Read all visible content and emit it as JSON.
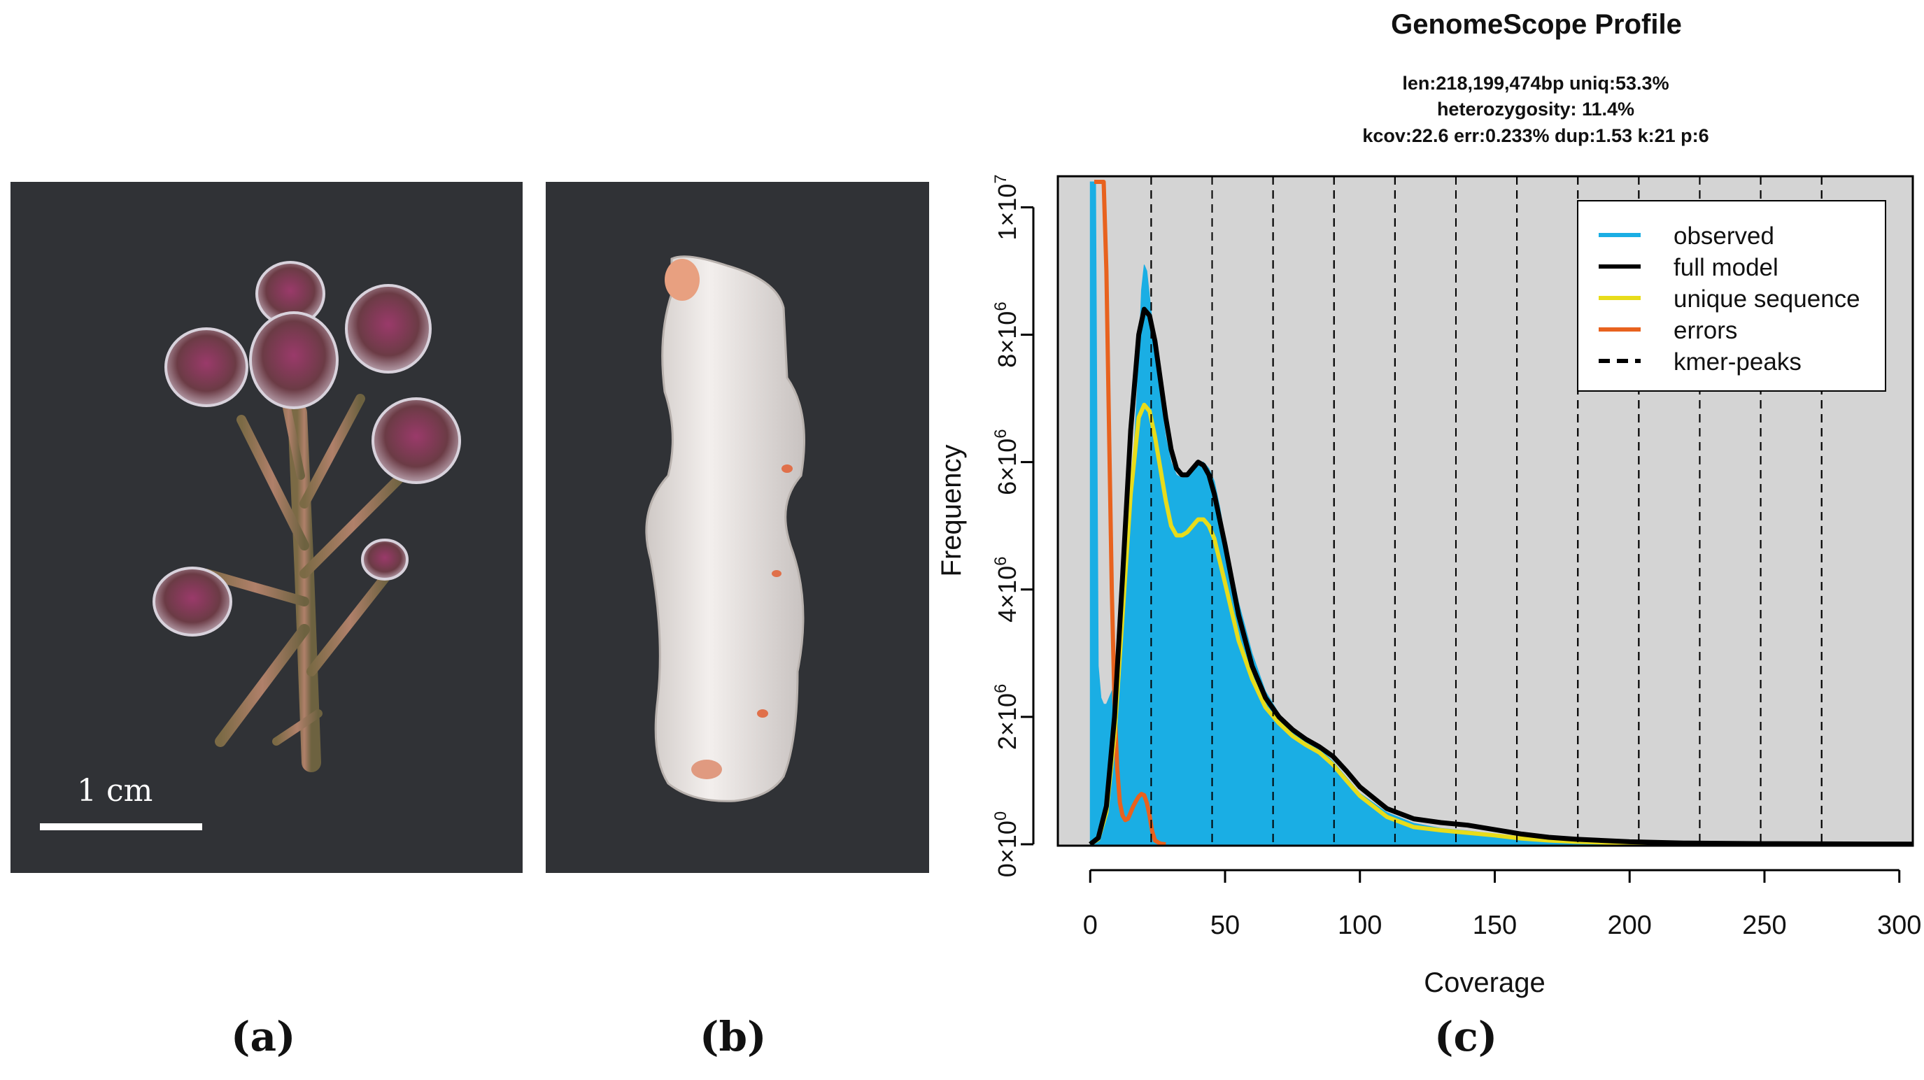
{
  "panel_labels": [
    "(a)",
    "(b)",
    "(c)"
  ],
  "scale_bar": {
    "text": "1 cm"
  },
  "chart_data": {
    "type": "line",
    "title": "GenomeScope Profile",
    "subtitle_lines": [
      "len:218,199,474bp uniq:53.3%",
      "heterozygosity: 11.4%",
      "kcov:22.6 err:0.233%  dup:1.53  k:21 p:6"
    ],
    "xlabel": "Coverage",
    "ylabel": "Frequency",
    "xlim": [
      -12,
      305
    ],
    "ylim": [
      0,
      10400000
    ],
    "x_ticks": [
      0,
      50,
      100,
      150,
      200,
      250,
      300
    ],
    "y_ticks": [
      {
        "value": 0,
        "mant": "0",
        "exp": "0"
      },
      {
        "value": 2000000,
        "mant": "2",
        "exp": "6"
      },
      {
        "value": 4000000,
        "mant": "4",
        "exp": "6"
      },
      {
        "value": 6000000,
        "mant": "6",
        "exp": "6"
      },
      {
        "value": 8000000,
        "mant": "8",
        "exp": "6"
      },
      {
        "value": 10000000,
        "mant": "1",
        "exp": "7"
      }
    ],
    "kmer_peaks": [
      22.6,
      45.2,
      67.8,
      90.4,
      113,
      135.6,
      158.2,
      180.8,
      203.4,
      226,
      248.6,
      271.2
    ],
    "legend": {
      "position": "top-right",
      "entries": [
        {
          "label": "observed",
          "color": "#1aaee4",
          "style": "solid"
        },
        {
          "label": "full model",
          "color": "#000000",
          "style": "solid"
        },
        {
          "label": "unique sequence",
          "color": "#e8dc1a",
          "style": "solid"
        },
        {
          "label": "errors",
          "color": "#e8621e",
          "style": "solid"
        },
        {
          "label": "kmer-peaks",
          "color": "#000000",
          "style": "dashed"
        }
      ]
    },
    "series": [
      {
        "name": "observed",
        "color": "#1aaee4",
        "x": [
          0,
          1,
          2,
          3,
          4,
          5,
          6,
          7,
          8,
          10,
          12,
          14,
          16,
          18,
          19,
          20,
          21,
          22,
          23,
          24,
          26,
          28,
          30,
          32,
          34,
          36,
          38,
          40,
          42,
          44,
          46,
          48,
          50,
          55,
          60,
          65,
          70,
          75,
          80,
          85,
          90,
          95,
          100,
          110,
          120,
          130,
          140,
          150,
          160,
          170,
          180,
          200,
          220,
          250,
          280,
          305
        ],
        "y": [
          10400000,
          10400000,
          10400000,
          2800000,
          2300000,
          2200000,
          2200000,
          2300000,
          2400000,
          2600000,
          3300000,
          4400000,
          6000000,
          7600000,
          8700000,
          9100000,
          9000000,
          8600000,
          8200000,
          7700000,
          7000000,
          6400000,
          6000000,
          5800000,
          5750000,
          5800000,
          5900000,
          6000000,
          6000000,
          5900000,
          5700000,
          5300000,
          4800000,
          3800000,
          3000000,
          2400000,
          2050000,
          1800000,
          1650000,
          1500000,
          1300000,
          1050000,
          800000,
          500000,
          330000,
          250000,
          210000,
          160000,
          110000,
          70000,
          45000,
          25000,
          15000,
          10000,
          8000,
          5000
        ]
      },
      {
        "name": "full model",
        "color": "#000000",
        "x": [
          0,
          3,
          6,
          9,
          12,
          15,
          18,
          20,
          22,
          24,
          26,
          28,
          30,
          32,
          34,
          36,
          38,
          40,
          42,
          44,
          46,
          48,
          50,
          55,
          60,
          65,
          70,
          75,
          80,
          85,
          90,
          95,
          100,
          110,
          120,
          130,
          140,
          150,
          160,
          170,
          180,
          200,
          220,
          250,
          280,
          305
        ],
        "y": [
          0,
          100000,
          600000,
          2000000,
          4200000,
          6500000,
          8000000,
          8400000,
          8300000,
          7900000,
          7300000,
          6700000,
          6200000,
          5900000,
          5800000,
          5800000,
          5900000,
          6000000,
          5950000,
          5800000,
          5500000,
          5100000,
          4700000,
          3600000,
          2800000,
          2300000,
          2000000,
          1800000,
          1650000,
          1530000,
          1380000,
          1150000,
          900000,
          560000,
          400000,
          340000,
          300000,
          230000,
          160000,
          110000,
          80000,
          40000,
          20000,
          10000,
          5000,
          2000
        ]
      },
      {
        "name": "unique sequence",
        "color": "#e8dc1a",
        "x": [
          0,
          3,
          6,
          9,
          12,
          15,
          18,
          20,
          22,
          24,
          26,
          28,
          30,
          32,
          34,
          36,
          38,
          40,
          42,
          44,
          46,
          48,
          50,
          55,
          60,
          65,
          70,
          75,
          80,
          85,
          90,
          95,
          100,
          110,
          120,
          130,
          140,
          150,
          160,
          170,
          180,
          200,
          220,
          250,
          280,
          305
        ],
        "y": [
          0,
          80000,
          500000,
          1700000,
          3600000,
          5500000,
          6700000,
          6900000,
          6800000,
          6400000,
          5900000,
          5400000,
          5000000,
          4850000,
          4850000,
          4900000,
          5000000,
          5100000,
          5100000,
          5000000,
          4800000,
          4450000,
          4100000,
          3200000,
          2600000,
          2150000,
          1900000,
          1700000,
          1560000,
          1440000,
          1250000,
          1000000,
          760000,
          430000,
          270000,
          220000,
          180000,
          140000,
          90000,
          60000,
          40000,
          20000,
          10000,
          5000,
          2000,
          1000
        ]
      },
      {
        "name": "errors",
        "color": "#e8621e",
        "x": [
          1.5,
          2,
          3,
          4,
          5,
          6,
          7,
          8,
          9,
          10,
          11,
          12,
          13,
          14,
          15,
          16,
          17,
          18,
          19,
          20,
          21,
          22,
          23,
          24,
          26,
          28
        ],
        "y": [
          10400000,
          10400000,
          10400000,
          10400000,
          10400000,
          9000000,
          6500000,
          4000000,
          2200000,
          1200000,
          650000,
          450000,
          380000,
          400000,
          500000,
          600000,
          680000,
          750000,
          790000,
          770000,
          650000,
          450000,
          200000,
          60000,
          10000,
          0
        ]
      }
    ]
  }
}
